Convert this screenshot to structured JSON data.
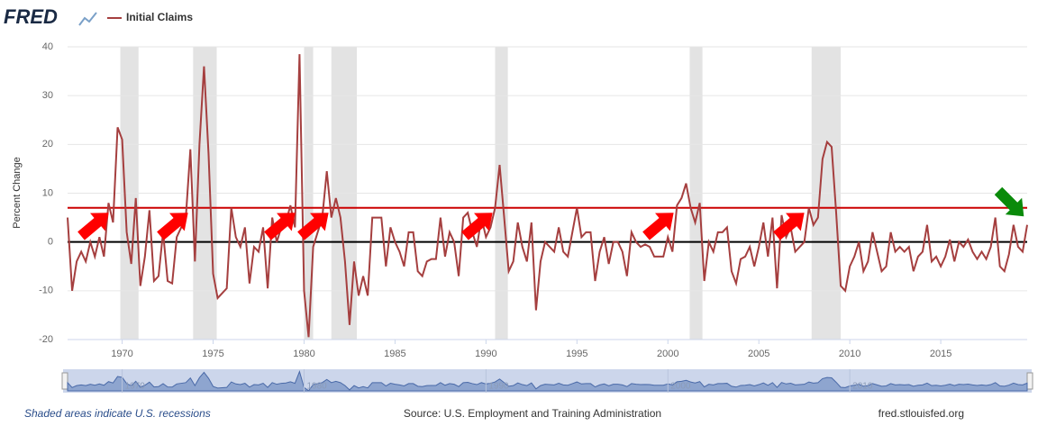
{
  "header": {
    "logo": "FRED"
  },
  "chart_data": {
    "type": "line",
    "y_label": "Percent Change",
    "x": [
      1967,
      1967.25,
      1967.5,
      1967.75,
      1968,
      1968.25,
      1968.5,
      1968.75,
      1969,
      1969.25,
      1969.5,
      1969.75,
      1970,
      1970.25,
      1970.5,
      1970.75,
      1971,
      1971.25,
      1971.5,
      1971.75,
      1972,
      1972.25,
      1972.5,
      1972.75,
      1973,
      1973.25,
      1973.5,
      1973.75,
      1974,
      1974.25,
      1974.5,
      1974.75,
      1975,
      1975.25,
      1975.5,
      1975.75,
      1976,
      1976.25,
      1976.5,
      1976.75,
      1977,
      1977.25,
      1977.5,
      1977.75,
      1978,
      1978.25,
      1978.5,
      1978.75,
      1979,
      1979.25,
      1979.5,
      1979.75,
      1980,
      1980.25,
      1980.5,
      1980.75,
      1981,
      1981.25,
      1981.5,
      1981.75,
      1982,
      1982.25,
      1982.5,
      1982.75,
      1983,
      1983.25,
      1983.5,
      1983.75,
      1984,
      1984.25,
      1984.5,
      1984.75,
      1985,
      1985.25,
      1985.5,
      1985.75,
      1986,
      1986.25,
      1986.5,
      1986.75,
      1987,
      1987.25,
      1987.5,
      1987.75,
      1988,
      1988.25,
      1988.5,
      1988.75,
      1989,
      1989.25,
      1989.5,
      1989.75,
      1990,
      1990.25,
      1990.5,
      1990.75,
      1991,
      1991.25,
      1991.5,
      1991.75,
      1992,
      1992.25,
      1992.5,
      1992.75,
      1993,
      1993.25,
      1993.5,
      1993.75,
      1994,
      1994.25,
      1994.5,
      1994.75,
      1995,
      1995.25,
      1995.5,
      1995.75,
      1996,
      1996.25,
      1996.5,
      1996.75,
      1997,
      1997.25,
      1997.5,
      1997.75,
      1998,
      1998.25,
      1998.5,
      1998.75,
      1999,
      1999.25,
      1999.5,
      1999.75,
      2000,
      2000.25,
      2000.5,
      2000.75,
      2001,
      2001.25,
      2001.5,
      2001.75,
      2002,
      2002.25,
      2002.5,
      2002.75,
      2003,
      2003.25,
      2003.5,
      2003.75,
      2004,
      2004.25,
      2004.5,
      2004.75,
      2005,
      2005.25,
      2005.5,
      2005.75,
      2006,
      2006.25,
      2006.5,
      2006.75,
      2007,
      2007.25,
      2007.5,
      2007.75,
      2008,
      2008.25,
      2008.5,
      2008.75,
      2009,
      2009.25,
      2009.5,
      2009.75,
      2010,
      2010.25,
      2010.5,
      2010.75,
      2011,
      2011.25,
      2011.5,
      2011.75,
      2012,
      2012.25,
      2012.5,
      2012.75,
      2013,
      2013.25,
      2013.5,
      2013.75,
      2014,
      2014.25,
      2014.5,
      2014.75,
      2015,
      2015.25,
      2015.5,
      2015.75,
      2016,
      2016.25,
      2016.5,
      2016.75,
      2017,
      2017.25,
      2017.5,
      2017.75,
      2018,
      2018.25,
      2018.5,
      2018.75,
      2019,
      2019.25,
      2019.5,
      2019.75
    ],
    "series": [
      {
        "name": "Initial Claims",
        "color": "#a53f3f",
        "values": [
          5,
          -10,
          -4,
          -2,
          -4,
          0,
          -3,
          1,
          -3,
          8,
          4,
          23.5,
          21,
          2,
          -4.5,
          9,
          -9,
          -3,
          6.5,
          -8,
          -7,
          2,
          -8,
          -8.5,
          1,
          3,
          5,
          19,
          -4,
          20,
          36,
          18,
          -6.5,
          -11.5,
          -10.5,
          -9.5,
          7,
          1,
          -1,
          3,
          -8.5,
          -1,
          -2,
          3,
          -9.5,
          5,
          0,
          3,
          4,
          7.5,
          3,
          38.5,
          -10,
          -19.5,
          -1,
          2,
          5,
          14.5,
          5,
          9,
          5,
          -4,
          -17,
          -4,
          -11,
          -7,
          -11,
          5,
          5,
          5,
          -5,
          3,
          0,
          -2,
          -5,
          2,
          2,
          -6,
          -7,
          -4,
          -3.5,
          -3.5,
          5,
          -3,
          2,
          0,
          -7,
          5,
          6,
          2,
          -1,
          5,
          1,
          3,
          7,
          15.8,
          5,
          -6,
          -4,
          4,
          -1,
          -4,
          4,
          -14,
          -4,
          0,
          -1,
          -2,
          3,
          -2,
          -3,
          2,
          7,
          1,
          2,
          2,
          -8,
          -2,
          1,
          -4.5,
          0,
          0,
          -2,
          -7,
          2,
          0,
          -1,
          -0.5,
          -1,
          -3,
          -3,
          -3,
          1,
          -2,
          7.5,
          9,
          12,
          7,
          4,
          8,
          -8,
          0,
          -2,
          2,
          2,
          3,
          -6,
          -8.5,
          -3.5,
          -3,
          -1,
          -5,
          -1,
          4,
          -3,
          5,
          -9.5,
          5.5,
          1,
          3,
          -2,
          -1,
          0,
          7,
          3.5,
          5,
          17,
          20.5,
          19.5,
          6,
          -9,
          -10,
          -5,
          -3,
          0,
          -6,
          -4,
          2,
          -2,
          -6,
          -5,
          2,
          -2,
          -1,
          -2,
          -1,
          -6,
          -3,
          -2,
          3.5,
          -4,
          -3,
          -5,
          -3,
          0.5,
          -4,
          0,
          -1,
          0.5,
          -2,
          -3.5,
          -2,
          -3.5,
          -1,
          5,
          -5,
          -6,
          -2.5,
          3.5,
          -1,
          -2,
          3.5
        ]
      }
    ],
    "xlim": [
      1967,
      2019.75
    ],
    "xticks": [
      1970,
      1975,
      1980,
      1985,
      1990,
      1995,
      2000,
      2005,
      2010,
      2015
    ],
    "ylim": [
      -20,
      40
    ],
    "yticks": [
      -20,
      -10,
      0,
      10,
      20,
      30,
      40
    ],
    "grid": true,
    "recessions": [
      [
        1969.9,
        1970.9
      ],
      [
        1973.9,
        1975.2
      ],
      [
        1980,
        1980.5
      ],
      [
        1981.5,
        1982.9
      ],
      [
        1990.5,
        1991.2
      ],
      [
        2001.2,
        2001.9
      ],
      [
        2007.9,
        2009.5
      ]
    ],
    "reference_lines": [
      {
        "value": 7,
        "color": "#cc0000"
      },
      {
        "value": 0,
        "color": "#000000"
      }
    ],
    "navigator_ticks": [
      1970,
      1980,
      1990,
      2000,
      2010
    ]
  },
  "footer": {
    "note": "Shaded areas indicate U.S. recessions",
    "source": "Source: U.S. Employment and Training Administration",
    "site": "fred.stlouisfed.org"
  }
}
